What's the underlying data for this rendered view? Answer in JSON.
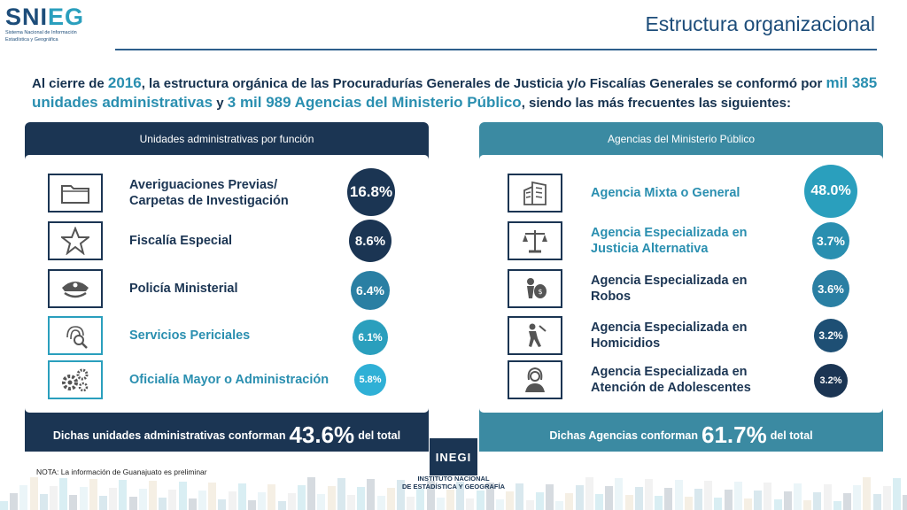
{
  "header": {
    "logo_word_1": "SNI",
    "logo_word_2": "EG",
    "logo_sub_1": "Sistema Nacional de Información",
    "logo_sub_2": "Estadística y Geográfica",
    "title": "Estructura organizacional"
  },
  "intro": {
    "t1": "Al cierre de ",
    "year": "2016",
    "t2": ", la estructura orgánica de las Procuradurías Generales de Justicia y/o Fiscalías Generales se conformó por ",
    "units": "mil 385 unidades administrativas",
    "t3": " y ",
    "agencies": "3 mil 989 Agencias del Ministerio Público",
    "t4": ", siendo las más frecuentes las siguientes:"
  },
  "left_panel": {
    "heading": "Unidades administrativas por función",
    "items": [
      {
        "label_1": "Averiguaciones Previas/",
        "label_2": "Carpetas de Investigación",
        "value": "16.8%",
        "icon": "folder-icon",
        "color": "#1b3553"
      },
      {
        "label_1": "Fiscalía Especial",
        "label_2": "",
        "value": "8.6%",
        "icon": "star-badge-icon",
        "color": "#1b3553"
      },
      {
        "label_1": "Policía Ministerial",
        "label_2": "",
        "value": "6.4%",
        "icon": "police-cap-icon",
        "color": "#2a7fa3"
      },
      {
        "label_1": "Servicios Periciales",
        "label_2": "",
        "value": "6.1%",
        "icon": "fingerprint-magnifier-icon",
        "color": "#2a9fbd"
      },
      {
        "label_1": "Oficialía Mayor o Administración",
        "label_2": "",
        "value": "5.8%",
        "icon": "gears-icon",
        "color": "#2fb0d6"
      }
    ],
    "footer_1": "Dichas unidades administrativas conforman",
    "footer_value": "43.6%",
    "footer_2": "del total"
  },
  "right_panel": {
    "heading": "Agencias del Ministerio Público",
    "items": [
      {
        "label_1": "Agencia Mixta o General",
        "label_2": "",
        "value": "48.0%",
        "icon": "building-icon",
        "color": "#2a9fbd"
      },
      {
        "label_1": "Agencia Especializada en",
        "label_2": "Justicia Alternativa",
        "value": "3.7%",
        "icon": "scales-icon",
        "color": "#2a8fb0"
      },
      {
        "label_1": "Agencia Especializada en",
        "label_2": "Robos",
        "value": "3.6%",
        "icon": "robber-bag-icon",
        "color": "#2a7fa3"
      },
      {
        "label_1": "Agencia Especializada en",
        "label_2": "Homicidios",
        "value": "3.2%",
        "icon": "homicide-icon",
        "color": "#1e4f74"
      },
      {
        "label_1": "Agencia Especializada en",
        "label_2": "Atención de Adolescentes",
        "value": "3.2%",
        "icon": "adolescent-icon",
        "color": "#1b3553"
      }
    ],
    "footer_1": "Dichas Agencias conforman",
    "footer_value": "61.7%",
    "footer_2": "del total"
  },
  "note": "NOTA: La información de Guanajuato es preliminar",
  "inegi": {
    "mark": "INEGI",
    "line_1": "INSTITUTO NACIONAL",
    "line_2": "DE ESTADÍSTICA Y GEOGRAFÍA"
  }
}
